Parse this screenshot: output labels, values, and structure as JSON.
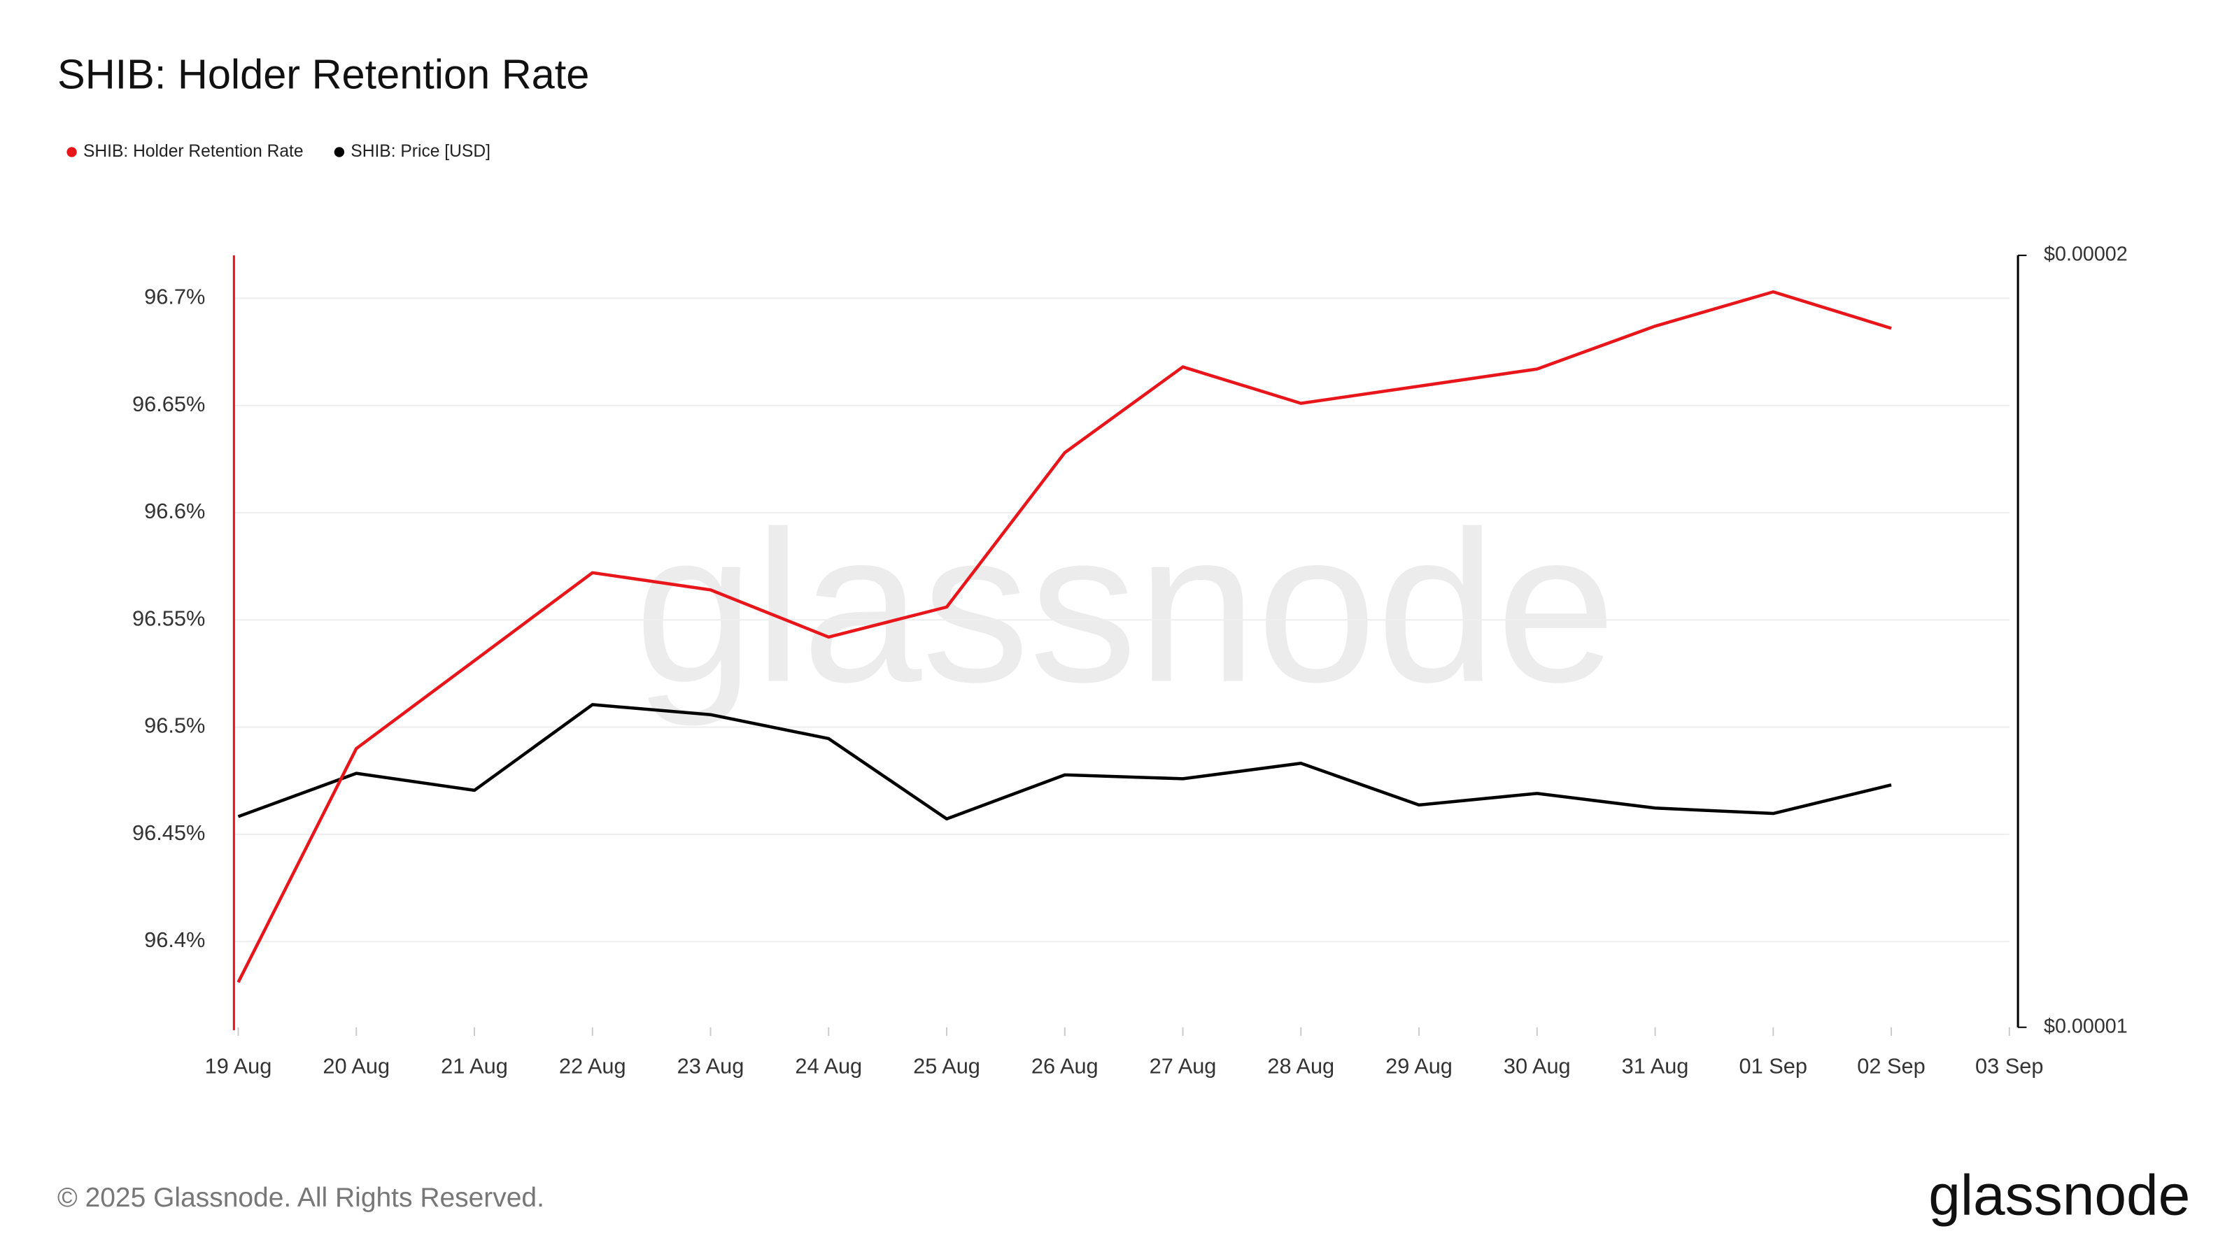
{
  "chart_data": {
    "type": "line",
    "title": "SHIB: Holder Retention Rate",
    "footer": "© 2025 Glassnode. All Rights Reserved.",
    "brand": "glassnode",
    "categories": [
      "19 Aug",
      "20 Aug",
      "21 Aug",
      "22 Aug",
      "23 Aug",
      "24 Aug",
      "25 Aug",
      "26 Aug",
      "27 Aug",
      "28 Aug",
      "29 Aug",
      "30 Aug",
      "31 Aug",
      "01 Sep",
      "02 Sep",
      "03 Sep"
    ],
    "series": [
      {
        "name": "SHIB: Holder Retention Rate",
        "color": "#e8161b",
        "axis": "y",
        "values": [
          96.381,
          96.49,
          96.531,
          96.572,
          96.564,
          96.542,
          96.556,
          96.628,
          96.668,
          96.651,
          96.659,
          96.667,
          96.687,
          96.703,
          96.686,
          null
        ]
      },
      {
        "name": "SHIB: Price [USD]",
        "color": "#000000",
        "axis": "y2",
        "values": [
          1.273e-05,
          1.329e-05,
          1.307e-05,
          1.418e-05,
          1.405e-05,
          1.374e-05,
          1.27e-05,
          1.327e-05,
          1.322e-05,
          1.342e-05,
          1.288e-05,
          1.303e-05,
          1.284e-05,
          1.277e-05,
          1.314e-05,
          null
        ]
      }
    ],
    "ylim": [
      96.36,
      96.72
    ],
    "yticks": [
      {
        "value": 96.4,
        "label": "96.4%"
      },
      {
        "value": 96.45,
        "label": "96.45%"
      },
      {
        "value": 96.5,
        "label": "96.5%"
      },
      {
        "value": 96.55,
        "label": "96.55%"
      },
      {
        "value": 96.6,
        "label": "96.6%"
      },
      {
        "value": 96.65,
        "label": "96.65%"
      },
      {
        "value": 96.7,
        "label": "96.7%"
      }
    ],
    "y2lim": [
      1e-05,
      2e-05
    ],
    "y2ticks": [
      {
        "value": 1e-05,
        "label": "$0.00001"
      },
      {
        "value": 2e-05,
        "label": "$0.00002"
      }
    ],
    "grid": true,
    "legend": "top-left"
  }
}
